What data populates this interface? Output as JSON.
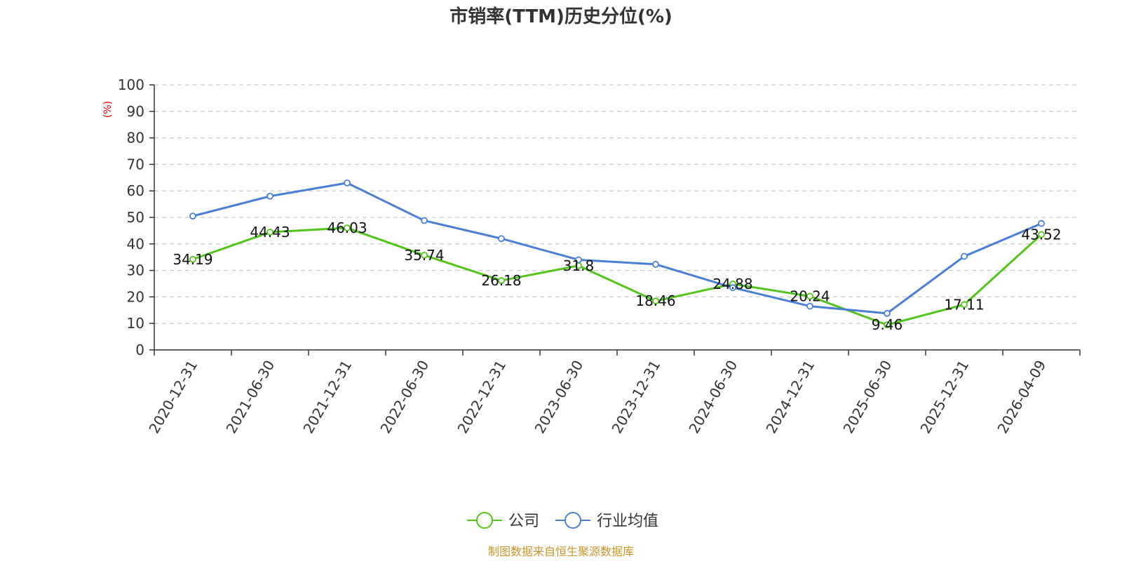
{
  "chart_data": {
    "type": "line",
    "title": "市销率(TTM)历史分位(%)",
    "ylabel": "(%)",
    "ylim": [
      0,
      100
    ],
    "yticks": [
      0,
      10,
      20,
      30,
      40,
      50,
      60,
      70,
      80,
      90,
      100
    ],
    "grid": true,
    "legend_position": "bottom",
    "categories": [
      "2020-12-31",
      "2021-06-30",
      "2021-12-31",
      "2022-06-30",
      "2022-12-31",
      "2023-06-30",
      "2023-12-31",
      "2024-06-30",
      "2024-12-31",
      "2025-06-30",
      "2025-12-31",
      "2026-04-09"
    ],
    "series": [
      {
        "name": "公司",
        "color": "#52c41a",
        "values": [
          34.19,
          44.43,
          46.03,
          35.74,
          26.18,
          31.8,
          18.46,
          24.88,
          20.24,
          9.46,
          17.11,
          43.52
        ],
        "labels": [
          "34.19",
          "44.43",
          "46.03",
          "35.74",
          "26.18",
          "31.8",
          "18.46",
          "24.88",
          "20.24",
          "9.46",
          "17.11",
          "43.52"
        ]
      },
      {
        "name": "行业均值",
        "color": "#4a7fd8",
        "values": [
          50.5,
          58.0,
          63.0,
          48.8,
          42.0,
          34.0,
          32.3,
          23.5,
          16.5,
          13.8,
          35.3,
          47.7
        ]
      }
    ],
    "source": "制图数据来自恒生聚源数据库"
  }
}
